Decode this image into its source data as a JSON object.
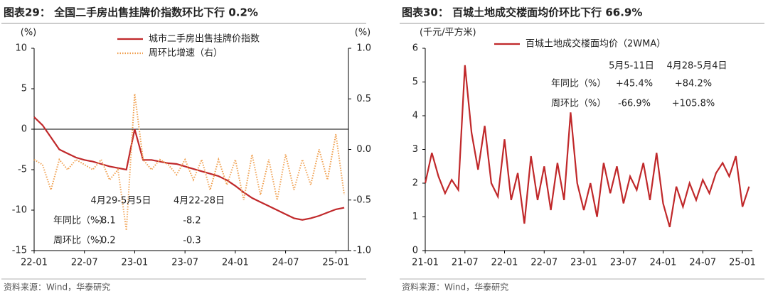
{
  "chart_data": [
    {
      "type": "line",
      "title": "图表29：  全国二手房出售挂牌价指数环比下行 0.2%",
      "source": "资料来源：Wind，华泰研究",
      "y_label": "(%)",
      "y2_label": "(%)",
      "x": [
        "22-01",
        null,
        null,
        null,
        null,
        null,
        "22-07",
        null,
        null,
        null,
        null,
        null,
        "23-01",
        null,
        null,
        null,
        null,
        null,
        "23-07",
        null,
        null,
        null,
        null,
        null,
        "24-01",
        null,
        null,
        null,
        null,
        null,
        "24-07",
        null,
        null,
        null,
        null,
        null,
        "25-01",
        null
      ],
      "series": [
        {
          "name": "城市二手房出售挂牌价指数",
          "color": "#c0282a",
          "style": "solid",
          "values": [
            1.5,
            0.5,
            -1,
            -2.5,
            -3,
            -3.5,
            -3.8,
            -4,
            -4.3,
            -4.6,
            -4.8,
            -5,
            0,
            -3.8,
            -3.8,
            -4,
            -4.2,
            -4.3,
            -4.6,
            -4.9,
            -5.2,
            -5.5,
            -5.8,
            -6.3,
            -7,
            -7.8,
            -8.5,
            -9,
            -9.5,
            -10,
            -10.5,
            -11,
            -11.2,
            -11,
            -10.7,
            -10.3,
            -9.9,
            -9.7
          ]
        },
        {
          "name": "周环比增速（右）",
          "color": "#f0a050",
          "style": "dotted",
          "axis": "y2",
          "values": [
            -0.1,
            -0.15,
            -0.4,
            -0.1,
            -0.2,
            -0.1,
            -0.15,
            -0.2,
            -0.1,
            -0.3,
            -0.2,
            -0.8,
            0.55,
            -0.1,
            -0.2,
            -0.1,
            -0.15,
            -0.25,
            -0.1,
            -0.3,
            -0.1,
            -0.4,
            -0.1,
            -0.35,
            -0.1,
            -0.5,
            -0.05,
            -0.45,
            -0.1,
            -0.5,
            -0.05,
            -0.4,
            -0.1,
            -0.35,
            0.0,
            -0.3,
            0.15,
            -0.45
          ]
        }
      ],
      "ylim": [
        -15,
        10
      ],
      "yticks": [
        -15,
        -10,
        -5,
        0,
        5,
        10
      ],
      "y2lim": [
        -1,
        1
      ],
      "y2ticks": [
        {
          "value": -1,
          "label": "-1.0"
        },
        -0.5,
        {
          "value": 0,
          "label": "0.0"
        },
        0.5,
        {
          "value": 1,
          "label": "1.0"
        }
      ],
      "table": {
        "header": [
          "4月29-5月5日",
          "4月22-28日"
        ],
        "rows": [
          [
            "年同比（%）",
            "-8.1",
            "-8.2"
          ],
          [
            "周环比（%）",
            "-0.2",
            "-0.3"
          ]
        ]
      }
    },
    {
      "type": "line",
      "title": "图表30：  百城土地成交楼面均价环比下行 66.9%",
      "source": "资料来源：Wind，华泰研究",
      "y_label": "(千元/平方米)",
      "x": [
        "21-01",
        null,
        null,
        null,
        null,
        null,
        "21-07",
        null,
        null,
        null,
        null,
        null,
        "22-01",
        null,
        null,
        null,
        null,
        null,
        "22-07",
        null,
        null,
        null,
        null,
        null,
        "23-01",
        null,
        null,
        null,
        null,
        null,
        "23-07",
        null,
        null,
        null,
        null,
        null,
        "24-01",
        null,
        null,
        null,
        null,
        null,
        "24-07",
        null,
        null,
        null,
        null,
        null,
        "25-01",
        null
      ],
      "series": [
        {
          "name": "百城土地成交楼面均价（2WMA）",
          "color": "#c0282a",
          "style": "solid",
          "values": [
            2.0,
            2.9,
            2.2,
            1.7,
            2.1,
            1.8,
            5.5,
            3.5,
            2.4,
            3.7,
            2.0,
            1.6,
            3.3,
            1.5,
            2.3,
            0.8,
            2.8,
            1.5,
            2.5,
            1.2,
            2.6,
            1.5,
            4.1,
            2.0,
            1.2,
            2.0,
            1.0,
            2.6,
            1.7,
            2.5,
            1.4,
            2.2,
            1.8,
            2.6,
            1.5,
            2.9,
            1.4,
            0.7,
            1.9,
            1.3,
            2.0,
            1.5,
            2.1,
            1.7,
            2.3,
            2.6,
            2.2,
            2.8,
            1.3,
            1.9
          ]
        }
      ],
      "ylim": [
        0,
        6
      ],
      "yticks": [
        0,
        1,
        2,
        3,
        4,
        5,
        6
      ],
      "table": {
        "header": [
          "5月5-11日",
          "4月28-5月4日"
        ],
        "rows": [
          [
            "年同比（%）",
            "+45.4%",
            "+84.2%"
          ],
          [
            "周环比（%）",
            "-66.9%",
            "+105.8%"
          ]
        ]
      }
    }
  ]
}
